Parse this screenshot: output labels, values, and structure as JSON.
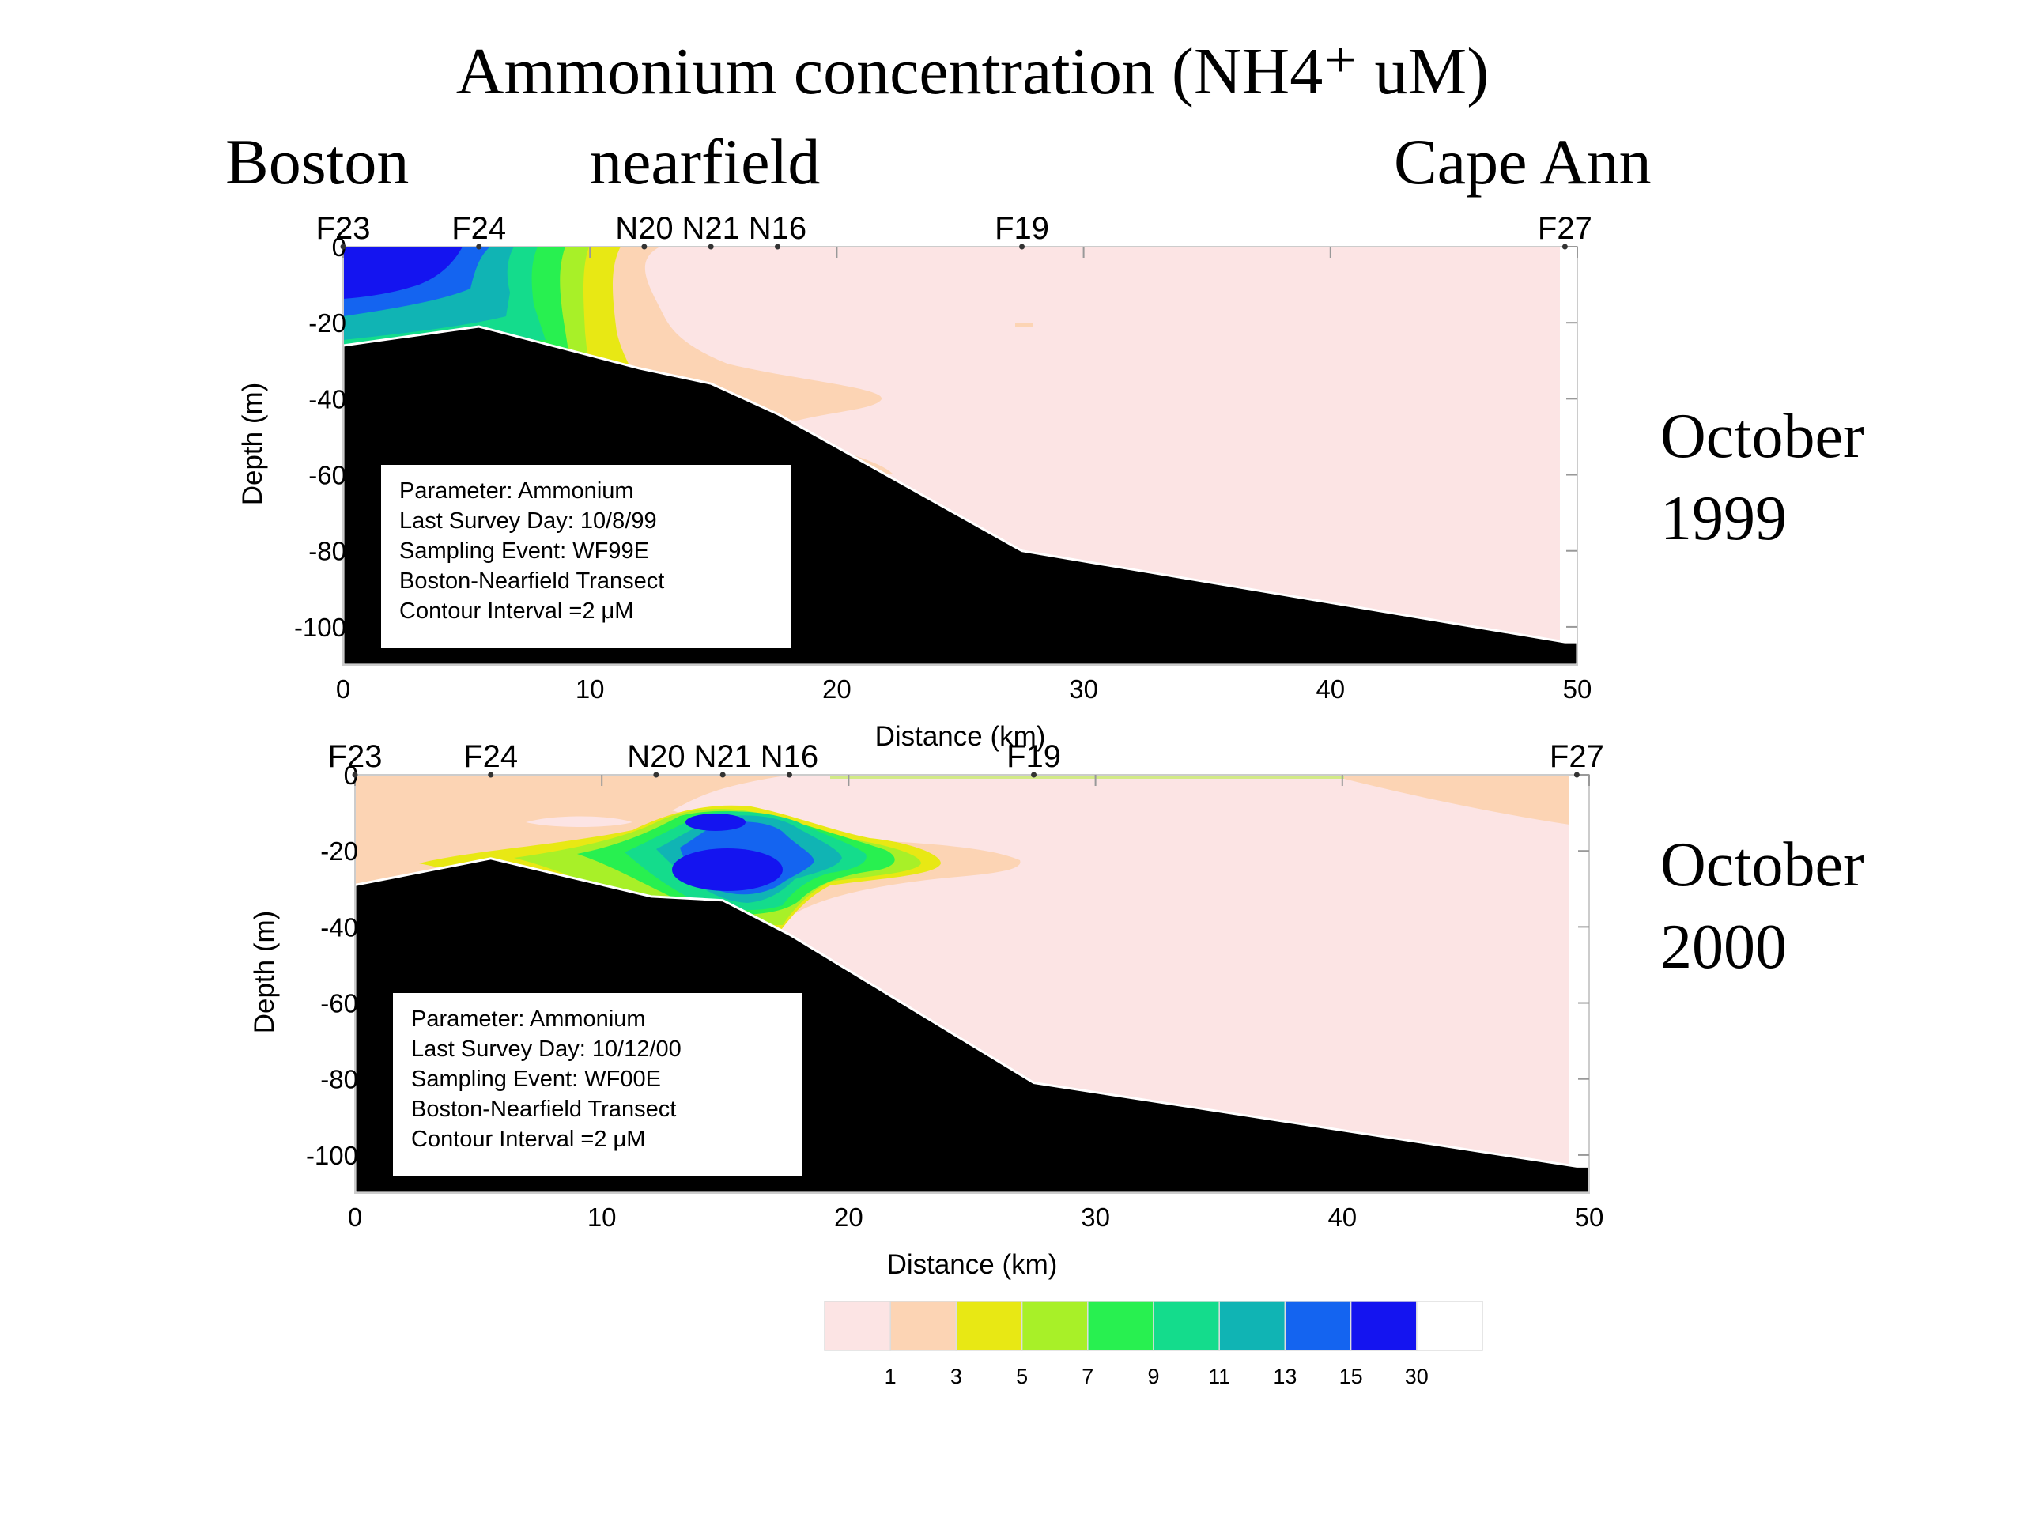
{
  "title": "Ammonium concentration (NH4⁺ uM)",
  "regions": {
    "left": "Boston",
    "middle": "nearfield",
    "right": "Cape Ann"
  },
  "chart_data": [
    {
      "type": "heatmap",
      "period_label": [
        "October",
        "1999"
      ],
      "xlabel": "Distance (km)",
      "ylabel": "Depth (m)",
      "xlim": [
        0,
        50
      ],
      "ylim": [
        -110,
        0
      ],
      "xticks": [
        0,
        10,
        20,
        30,
        40,
        50
      ],
      "yticks": [
        0,
        -20,
        -40,
        -60,
        -80,
        -100
      ],
      "stations": [
        {
          "name": "F23",
          "x": 0
        },
        {
          "name": "F24",
          "x": 5.5
        },
        {
          "name": "N20",
          "x": 12.2
        },
        {
          "name": "N21",
          "x": 14.9
        },
        {
          "name": "N16",
          "x": 17.6
        },
        {
          "name": "F19",
          "x": 27.5
        },
        {
          "name": "F27",
          "x": 49.5
        }
      ],
      "bathymetry": [
        [
          0,
          -26
        ],
        [
          5.5,
          -21
        ],
        [
          12,
          -32
        ],
        [
          14.9,
          -36
        ],
        [
          17.6,
          -44
        ],
        [
          27.5,
          -80
        ],
        [
          49.5,
          -104
        ],
        [
          50,
          -104
        ]
      ],
      "info": [
        "Parameter: Ammonium",
        "Last Survey Day: 10/8/99",
        "Sampling Event: WF99E",
        "Boston-Nearfield Transect",
        "Contour Interval =2 μM"
      ],
      "colors": {
        "background_level": "#fce4e4",
        "bottom": "#000000"
      }
    },
    {
      "type": "heatmap",
      "period_label": [
        "October",
        "2000"
      ],
      "xlabel": "Distance (km)",
      "ylabel": "Depth (m)",
      "xlim": [
        0,
        50
      ],
      "ylim": [
        -110,
        0
      ],
      "xticks": [
        0,
        10,
        20,
        30,
        40,
        50
      ],
      "yticks": [
        0,
        -20,
        -40,
        -60,
        -80,
        -100
      ],
      "stations": [
        {
          "name": "F23",
          "x": 0
        },
        {
          "name": "F24",
          "x": 5.5
        },
        {
          "name": "N20",
          "x": 12.2
        },
        {
          "name": "N21",
          "x": 14.9
        },
        {
          "name": "N16",
          "x": 17.6
        },
        {
          "name": "F19",
          "x": 27.5
        },
        {
          "name": "F27",
          "x": 49.5
        }
      ],
      "bathymetry": [
        [
          0,
          -29
        ],
        [
          5.5,
          -22
        ],
        [
          12,
          -32
        ],
        [
          14.9,
          -33
        ],
        [
          17.6,
          -42
        ],
        [
          27.5,
          -81
        ],
        [
          49.5,
          -103
        ],
        [
          50,
          -103
        ]
      ],
      "info": [
        "Parameter: Ammonium",
        "Last Survey Day: 10/12/00",
        "Sampling Event: WF00E",
        "Boston-Nearfield Transect",
        "Contour Interval =2 μM"
      ],
      "colors": {
        "background_level": "#fce4e4",
        "bottom": "#000000"
      }
    }
  ],
  "colorbar": {
    "labels": [
      "1",
      "3",
      "5",
      "7",
      "9",
      "11",
      "13",
      "15",
      "30"
    ],
    "colors": [
      "#fce4e4",
      "#fcd4b4",
      "#e8e814",
      "#a8f028",
      "#28f050",
      "#14dc8c",
      "#10b4b4",
      "#1464f0",
      "#1414f0",
      "#ffffff"
    ]
  }
}
